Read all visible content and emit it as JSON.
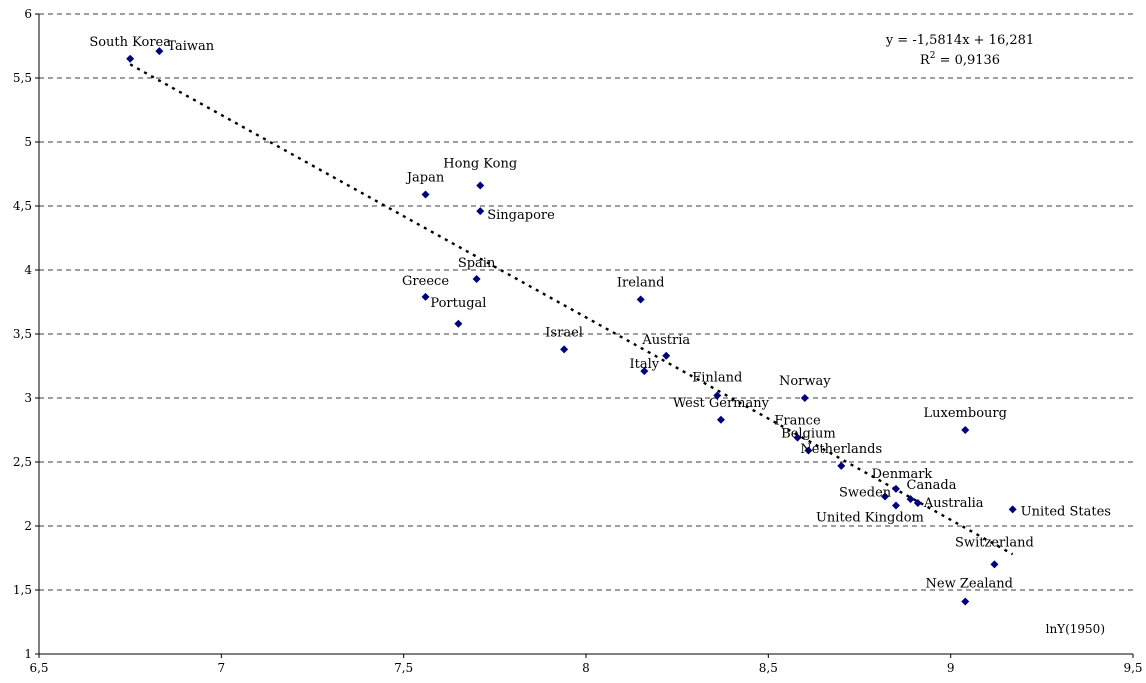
{
  "chart_data": {
    "type": "scatter",
    "title": "",
    "xlabel": "lnY(1950)",
    "ylabel": "",
    "xlim": [
      6.5,
      9.5
    ],
    "ylim": [
      1,
      6
    ],
    "xticks": [
      "6,5",
      "7",
      "7,5",
      "8",
      "8,5",
      "9",
      "9,5"
    ],
    "yticks": [
      "1",
      "1,5",
      "2",
      "2,5",
      "3",
      "3,5",
      "4",
      "4,5",
      "5",
      "5,5",
      "6"
    ],
    "grid": "horizontal dashed",
    "marker_color": "#00007f",
    "trendline": {
      "type": "linear",
      "slope": -1.5814,
      "intercept": 16.281,
      "x_range": [
        6.75,
        9.17
      ],
      "equation": "y = -1,5814x + 16,281",
      "r2_prefix": "R",
      "r2_sup": "2",
      "r2_value": " = 0,9136"
    },
    "points": [
      {
        "label": "South Korea",
        "x": 6.75,
        "y": 5.65
      },
      {
        "label": "Taiwan",
        "x": 6.83,
        "y": 5.71
      },
      {
        "label": "Japan",
        "x": 7.56,
        "y": 4.59
      },
      {
        "label": "Hong Kong",
        "x": 7.71,
        "y": 4.66
      },
      {
        "label": "Singapore",
        "x": 7.71,
        "y": 4.46
      },
      {
        "label": "Spain",
        "x": 7.7,
        "y": 3.93
      },
      {
        "label": "Greece",
        "x": 7.56,
        "y": 3.79
      },
      {
        "label": "Portugal",
        "x": 7.65,
        "y": 3.58
      },
      {
        "label": "Ireland",
        "x": 8.15,
        "y": 3.77
      },
      {
        "label": "Israel",
        "x": 7.94,
        "y": 3.38
      },
      {
        "label": "Austria",
        "x": 8.22,
        "y": 3.33
      },
      {
        "label": "Italy",
        "x": 8.16,
        "y": 3.21
      },
      {
        "label": "Finland",
        "x": 8.36,
        "y": 3.02
      },
      {
        "label": "West Germany",
        "x": 8.37,
        "y": 2.83
      },
      {
        "label": "Norway",
        "x": 8.6,
        "y": 3.0
      },
      {
        "label": "France",
        "x": 8.58,
        "y": 2.69
      },
      {
        "label": "Belgium",
        "x": 8.61,
        "y": 2.59
      },
      {
        "label": "Netherlands",
        "x": 8.7,
        "y": 2.47
      },
      {
        "label": "Luxembourg",
        "x": 9.04,
        "y": 2.75
      },
      {
        "label": "Denmark",
        "x": 8.85,
        "y": 2.29
      },
      {
        "label": "Sweden",
        "x": 8.82,
        "y": 2.23
      },
      {
        "label": "Canada",
        "x": 8.89,
        "y": 2.21
      },
      {
        "label": "Australia",
        "x": 8.91,
        "y": 2.18
      },
      {
        "label": "United Kingdom",
        "x": 8.85,
        "y": 2.16
      },
      {
        "label": "United States",
        "x": 9.17,
        "y": 2.13
      },
      {
        "label": "Switzerland",
        "x": 9.12,
        "y": 1.7
      },
      {
        "label": "New Zealand",
        "x": 9.04,
        "y": 1.41
      }
    ]
  }
}
